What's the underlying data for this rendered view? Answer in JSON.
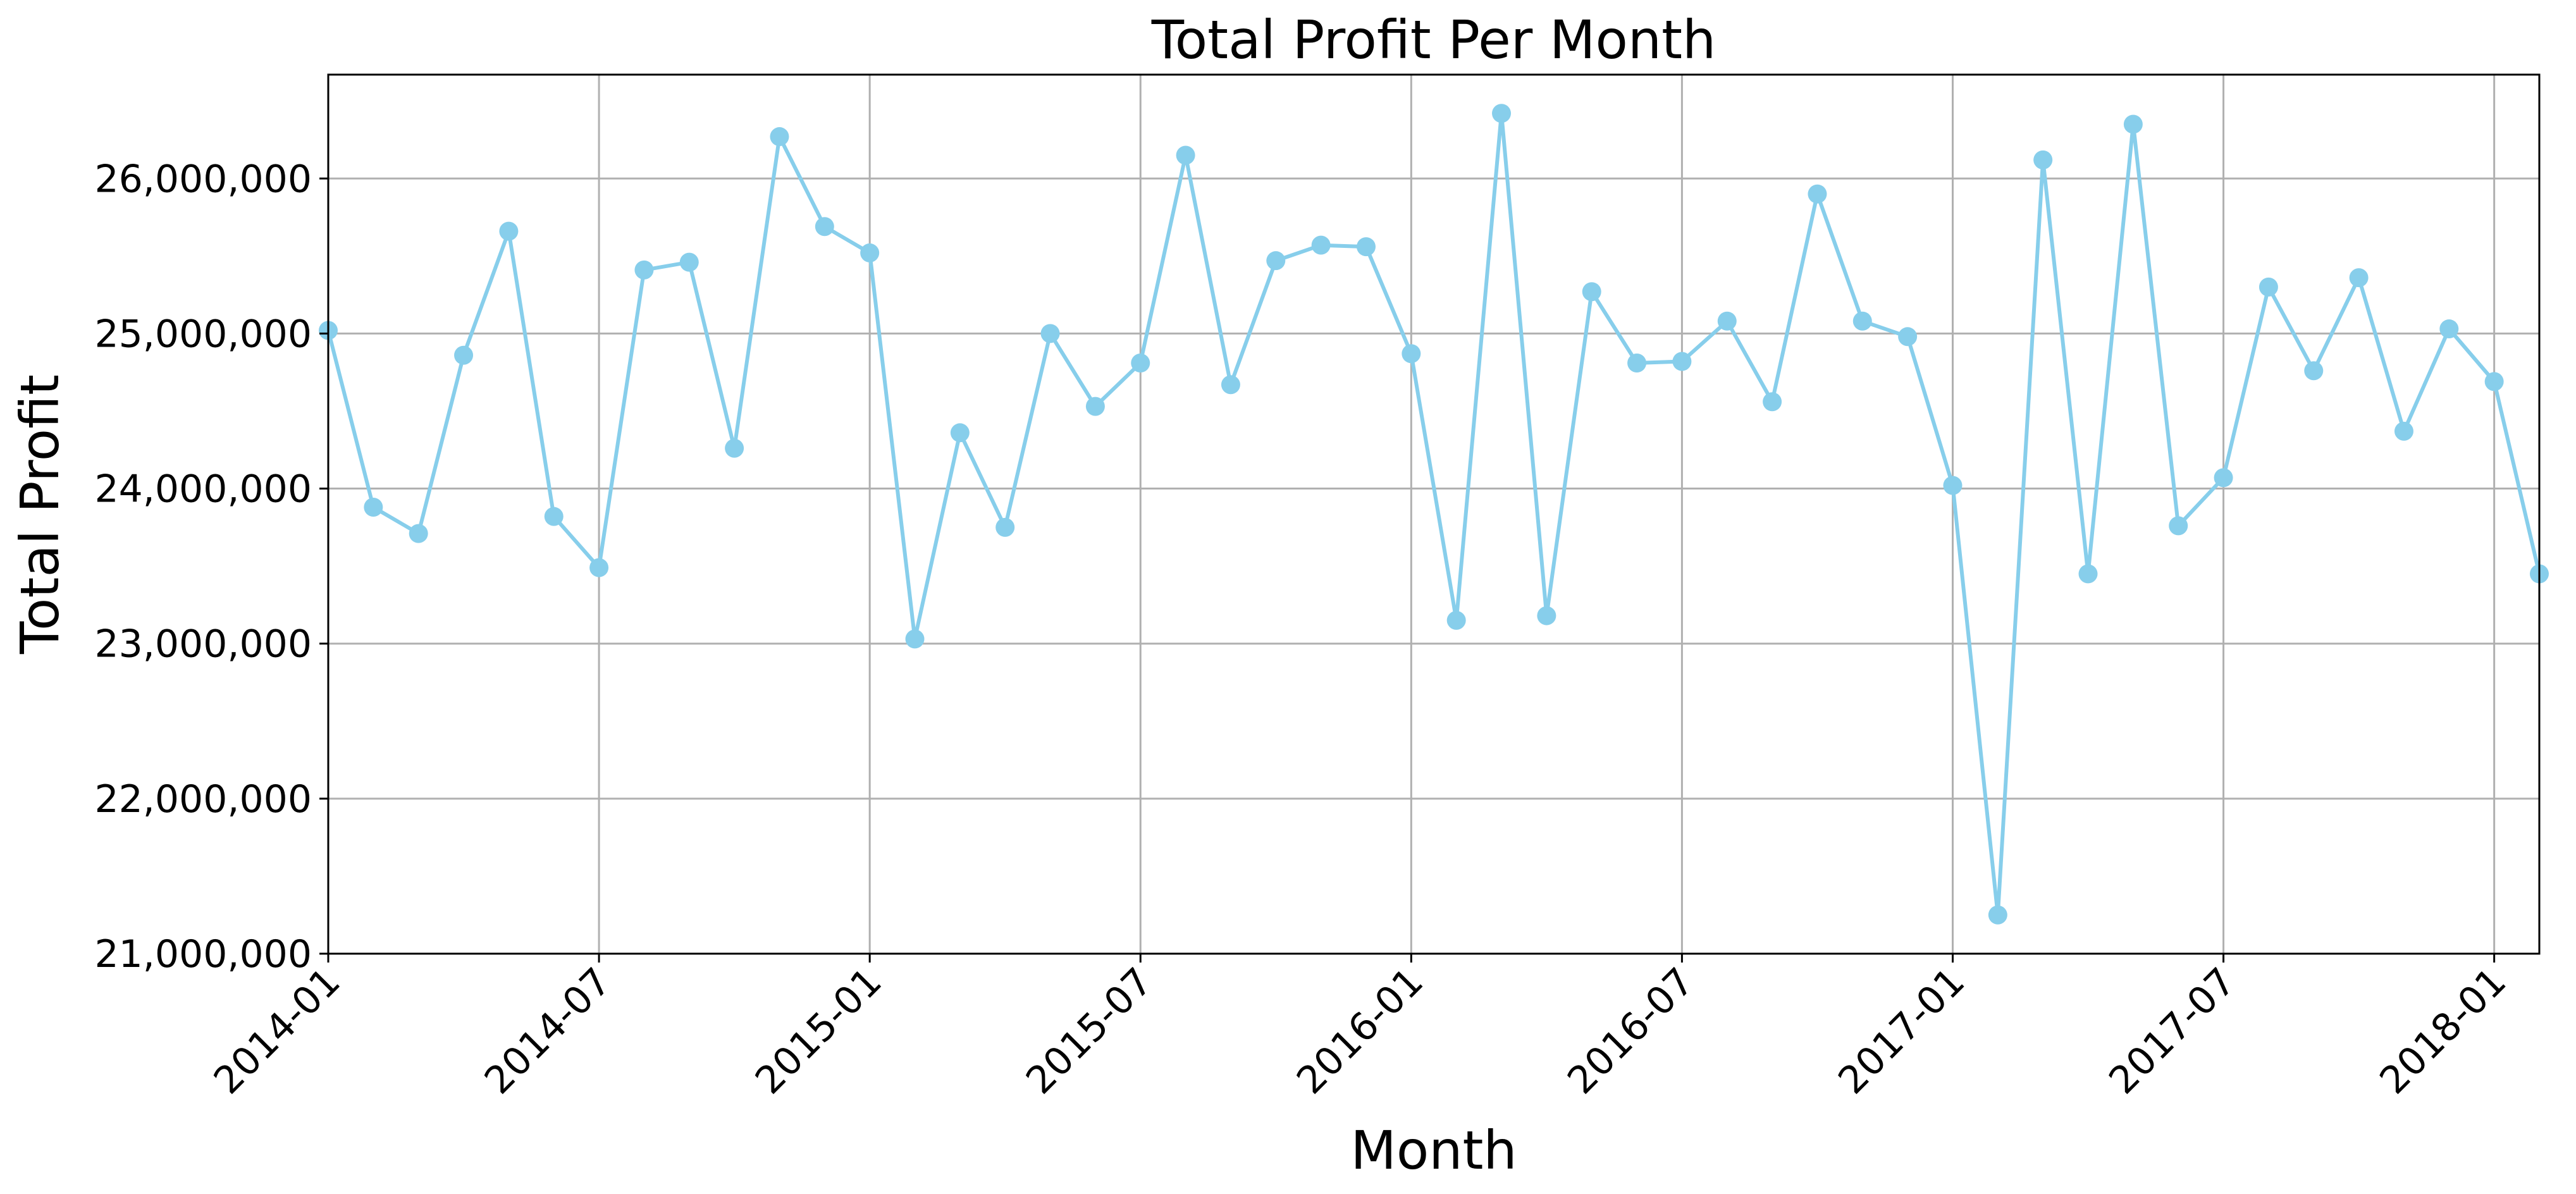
{
  "chart_data": {
    "type": "line",
    "title": "Total Profit Per Month",
    "xlabel": "Month",
    "ylabel": "Total Profit",
    "x_tick_labels": [
      "2014-01",
      "2014-07",
      "2015-01",
      "2015-07",
      "2016-01",
      "2016-07",
      "2017-01",
      "2017-07",
      "2018-01"
    ],
    "y_tick_labels": [
      "21,000,000",
      "22,000,000",
      "23,000,000",
      "24,000,000",
      "25,000,000",
      "26,000,000"
    ],
    "y_ticks": [
      21000000,
      22000000,
      23000000,
      24000000,
      25000000,
      26000000
    ],
    "ylim": [
      21000000,
      26670000
    ],
    "xlim": [
      "2014-01",
      "2018-02"
    ],
    "grid": true,
    "color": "#87CEEB",
    "marker": "circle",
    "x": [
      "2014-01",
      "2014-02",
      "2014-03",
      "2014-04",
      "2014-05",
      "2014-06",
      "2014-07",
      "2014-08",
      "2014-09",
      "2014-10",
      "2014-11",
      "2014-12",
      "2015-01",
      "2015-02",
      "2015-03",
      "2015-04",
      "2015-05",
      "2015-06",
      "2015-07",
      "2015-08",
      "2015-09",
      "2015-10",
      "2015-11",
      "2015-12",
      "2016-01",
      "2016-02",
      "2016-03",
      "2016-04",
      "2016-05",
      "2016-06",
      "2016-07",
      "2016-08",
      "2016-09",
      "2016-10",
      "2016-11",
      "2016-12",
      "2017-01",
      "2017-02",
      "2017-03",
      "2017-04",
      "2017-05",
      "2017-06",
      "2017-07",
      "2017-08",
      "2017-09",
      "2017-10",
      "2017-11",
      "2017-12",
      "2018-01",
      "2018-02"
    ],
    "values": [
      25020000,
      23880000,
      23710000,
      24860000,
      25660000,
      23820000,
      23490000,
      25410000,
      25460000,
      24260000,
      26270000,
      25690000,
      25520000,
      23030000,
      24360000,
      23750000,
      25000000,
      24530000,
      24810000,
      26150000,
      24670000,
      25470000,
      25570000,
      25560000,
      24870000,
      23150000,
      26420000,
      23180000,
      25270000,
      24810000,
      24820000,
      25080000,
      24560000,
      25900000,
      25080000,
      24980000,
      24020000,
      21250000,
      26120000,
      23450000,
      26350000,
      23760000,
      24070000,
      25300000,
      24760000,
      25360000,
      24370000,
      25030000,
      24690000,
      23450000
    ]
  }
}
